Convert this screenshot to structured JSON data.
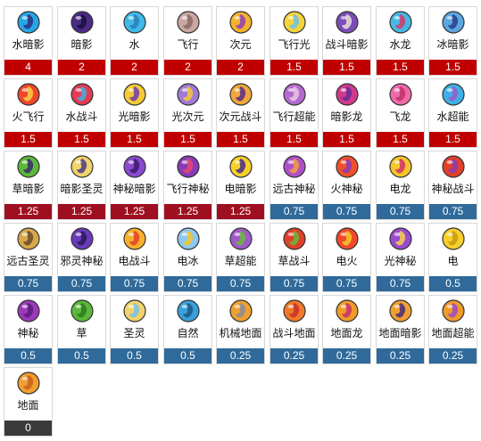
{
  "palette": {
    "bar_high": "#c00000",
    "bar_mid": "#9e1020",
    "bar_low": "#2f6a9a",
    "bar_zero": "#3a3a3a"
  },
  "tiles": [
    {
      "name": "水暗影",
      "value": "4",
      "icon": "water-shadow-swirl-icon",
      "colors": [
        "#27a6e6",
        "#2b2f7a"
      ]
    },
    {
      "name": "暗影",
      "value": "2",
      "icon": "shadow-swirl-icon",
      "colors": [
        "#4b2a86",
        "#1a0f3a"
      ]
    },
    {
      "name": "水",
      "value": "2",
      "icon": "water-drop-icon",
      "colors": [
        "#3fb9e8",
        "#2a7fb8"
      ]
    },
    {
      "name": "飞行",
      "value": "2",
      "icon": "wing-icon",
      "colors": [
        "#c9a7a0",
        "#8b6a66"
      ]
    },
    {
      "name": "次元",
      "value": "2",
      "icon": "dimension-ring-icon",
      "colors": [
        "#f5b22b",
        "#8c3fb8"
      ]
    },
    {
      "name": "飞行光",
      "value": "1.5",
      "icon": "winged-light-icon",
      "colors": [
        "#f6d43a",
        "#6cc0ea"
      ]
    },
    {
      "name": "战斗暗影",
      "value": "1.5",
      "icon": "fighting-shadow-icon",
      "colors": [
        "#7b4bb8",
        "#e8e0d8"
      ]
    },
    {
      "name": "水龙",
      "value": "1.5",
      "icon": "water-dragon-icon",
      "colors": [
        "#45b8e6",
        "#d43a6a"
      ]
    },
    {
      "name": "冰暗影",
      "value": "1.5",
      "icon": "ice-shadow-icon",
      "colors": [
        "#5aa8e0",
        "#2c3c8a"
      ]
    },
    {
      "name": "火飞行",
      "value": "1.5",
      "icon": "fire-flying-icon",
      "colors": [
        "#f0472a",
        "#f7d24a"
      ]
    },
    {
      "name": "水战斗",
      "value": "1.5",
      "icon": "water-fighting-icon",
      "colors": [
        "#e33b52",
        "#3fb0e0"
      ]
    },
    {
      "name": "光暗影",
      "value": "1.5",
      "icon": "light-shadow-icon",
      "colors": [
        "#f4c934",
        "#6b3ab0"
      ]
    },
    {
      "name": "光次元",
      "value": "1.5",
      "icon": "light-dimension-icon",
      "colors": [
        "#a07ad8",
        "#f4c934"
      ]
    },
    {
      "name": "次元战斗",
      "value": "1.5",
      "icon": "dimension-fighting-icon",
      "colors": [
        "#f2a73a",
        "#5a2b8a"
      ]
    },
    {
      "name": "飞行超能",
      "value": "1.5",
      "icon": "flying-psychic-icon",
      "colors": [
        "#b36ad0",
        "#e8c8e0"
      ]
    },
    {
      "name": "暗影龙",
      "value": "1.5",
      "icon": "shadow-dragon-icon",
      "colors": [
        "#d03a8a",
        "#6a2a9a"
      ]
    },
    {
      "name": "飞龙",
      "value": "1.5",
      "icon": "flying-dragon-icon",
      "colors": [
        "#ef6aa8",
        "#c0306a"
      ]
    },
    {
      "name": "水超能",
      "value": "1.5",
      "icon": "water-psychic-icon",
      "colors": [
        "#3fb0e6",
        "#9a5ac8"
      ]
    },
    {
      "name": "草暗影",
      "value": "1.25",
      "icon": "grass-shadow-icon",
      "colors": [
        "#5cb83a",
        "#3a2a6a"
      ]
    },
    {
      "name": "暗影圣灵",
      "value": "1.25",
      "icon": "shadow-holy-icon",
      "colors": [
        "#f2d36a",
        "#4a3a8a"
      ]
    },
    {
      "name": "神秘暗影",
      "value": "1.25",
      "icon": "mystic-shadow-icon",
      "colors": [
        "#8a4ad0",
        "#3a1a6a"
      ]
    },
    {
      "name": "飞行神秘",
      "value": "1.25",
      "icon": "flying-mystic-icon",
      "colors": [
        "#8a3ab8",
        "#e84a6a"
      ]
    },
    {
      "name": "电暗影",
      "value": "1.25",
      "icon": "electric-shadow-icon",
      "colors": [
        "#f6d02a",
        "#4a2a8a"
      ]
    },
    {
      "name": "远古神秘",
      "value": "0.75",
      "icon": "ancient-mystic-icon",
      "colors": [
        "#b050c8",
        "#f0a040"
      ]
    },
    {
      "name": "火神秘",
      "value": "0.75",
      "icon": "fire-mystic-icon",
      "colors": [
        "#f0502a",
        "#8a3ab8"
      ]
    },
    {
      "name": "电龙",
      "value": "0.75",
      "icon": "electric-dragon-icon",
      "colors": [
        "#f6c72a",
        "#d0306a"
      ]
    },
    {
      "name": "神秘战斗",
      "value": "0.75",
      "icon": "mystic-fighting-icon",
      "colors": [
        "#e0402a",
        "#8a3ab8"
      ]
    },
    {
      "name": "远古圣灵",
      "value": "0.75",
      "icon": "ancient-holy-icon",
      "colors": [
        "#d8a84a",
        "#6a4a2a"
      ]
    },
    {
      "name": "邪灵神秘",
      "value": "0.75",
      "icon": "evil-mystic-icon",
      "colors": [
        "#6a3ab8",
        "#2a1a5a"
      ]
    },
    {
      "name": "电战斗",
      "value": "0.75",
      "icon": "electric-fighting-icon",
      "colors": [
        "#f6b02a",
        "#e0402a"
      ]
    },
    {
      "name": "电冰",
      "value": "0.75",
      "icon": "electric-ice-icon",
      "colors": [
        "#8ec8f0",
        "#f6c72a"
      ]
    },
    {
      "name": "草超能",
      "value": "0.75",
      "icon": "grass-psychic-icon",
      "colors": [
        "#a05ac8",
        "#6ab83a"
      ]
    },
    {
      "name": "草战斗",
      "value": "0.75",
      "icon": "grass-fighting-icon",
      "colors": [
        "#e0402a",
        "#6ab83a"
      ]
    },
    {
      "name": "电火",
      "value": "0.75",
      "icon": "electric-fire-icon",
      "colors": [
        "#f04a2a",
        "#f6c72a"
      ]
    },
    {
      "name": "光神秘",
      "value": "0.75",
      "icon": "light-mystic-icon",
      "colors": [
        "#9a4ad0",
        "#f6d04a"
      ]
    },
    {
      "name": "电",
      "value": "0.5",
      "icon": "electric-bolt-icon",
      "colors": [
        "#f6d02a",
        "#c89a10"
      ]
    },
    {
      "name": "神秘",
      "value": "0.5",
      "icon": "mystic-icon",
      "colors": [
        "#9a3ab8",
        "#5a1a7a"
      ]
    },
    {
      "name": "草",
      "value": "0.5",
      "icon": "grass-leaf-icon",
      "colors": [
        "#5cb83a",
        "#2e7a1e"
      ]
    },
    {
      "name": "圣灵",
      "value": "0.5",
      "icon": "holy-spirit-icon",
      "colors": [
        "#f2d36a",
        "#7ac0e8"
      ]
    },
    {
      "name": "自然",
      "value": "0.5",
      "icon": "nature-icon",
      "colors": [
        "#3aa0d8",
        "#1a5a8a"
      ]
    },
    {
      "name": "机械地面",
      "value": "0.25",
      "icon": "mechanical-ground-icon",
      "colors": [
        "#f0a030",
        "#8a8a9a"
      ]
    },
    {
      "name": "战斗地面",
      "value": "0.25",
      "icon": "fighting-ground-icon",
      "colors": [
        "#f07a2a",
        "#c8302a"
      ]
    },
    {
      "name": "地面龙",
      "value": "0.25",
      "icon": "ground-dragon-icon",
      "colors": [
        "#f09a2a",
        "#c8306a"
      ]
    },
    {
      "name": "地面暗影",
      "value": "0.25",
      "icon": "ground-shadow-icon",
      "colors": [
        "#f0a030",
        "#4a2a7a"
      ]
    },
    {
      "name": "地面超能",
      "value": "0.25",
      "icon": "ground-psychic-icon",
      "colors": [
        "#f09a2a",
        "#9a4ac8"
      ]
    },
    {
      "name": "地面",
      "value": "0",
      "icon": "ground-icon",
      "colors": [
        "#f0a030",
        "#c8601a"
      ]
    }
  ]
}
